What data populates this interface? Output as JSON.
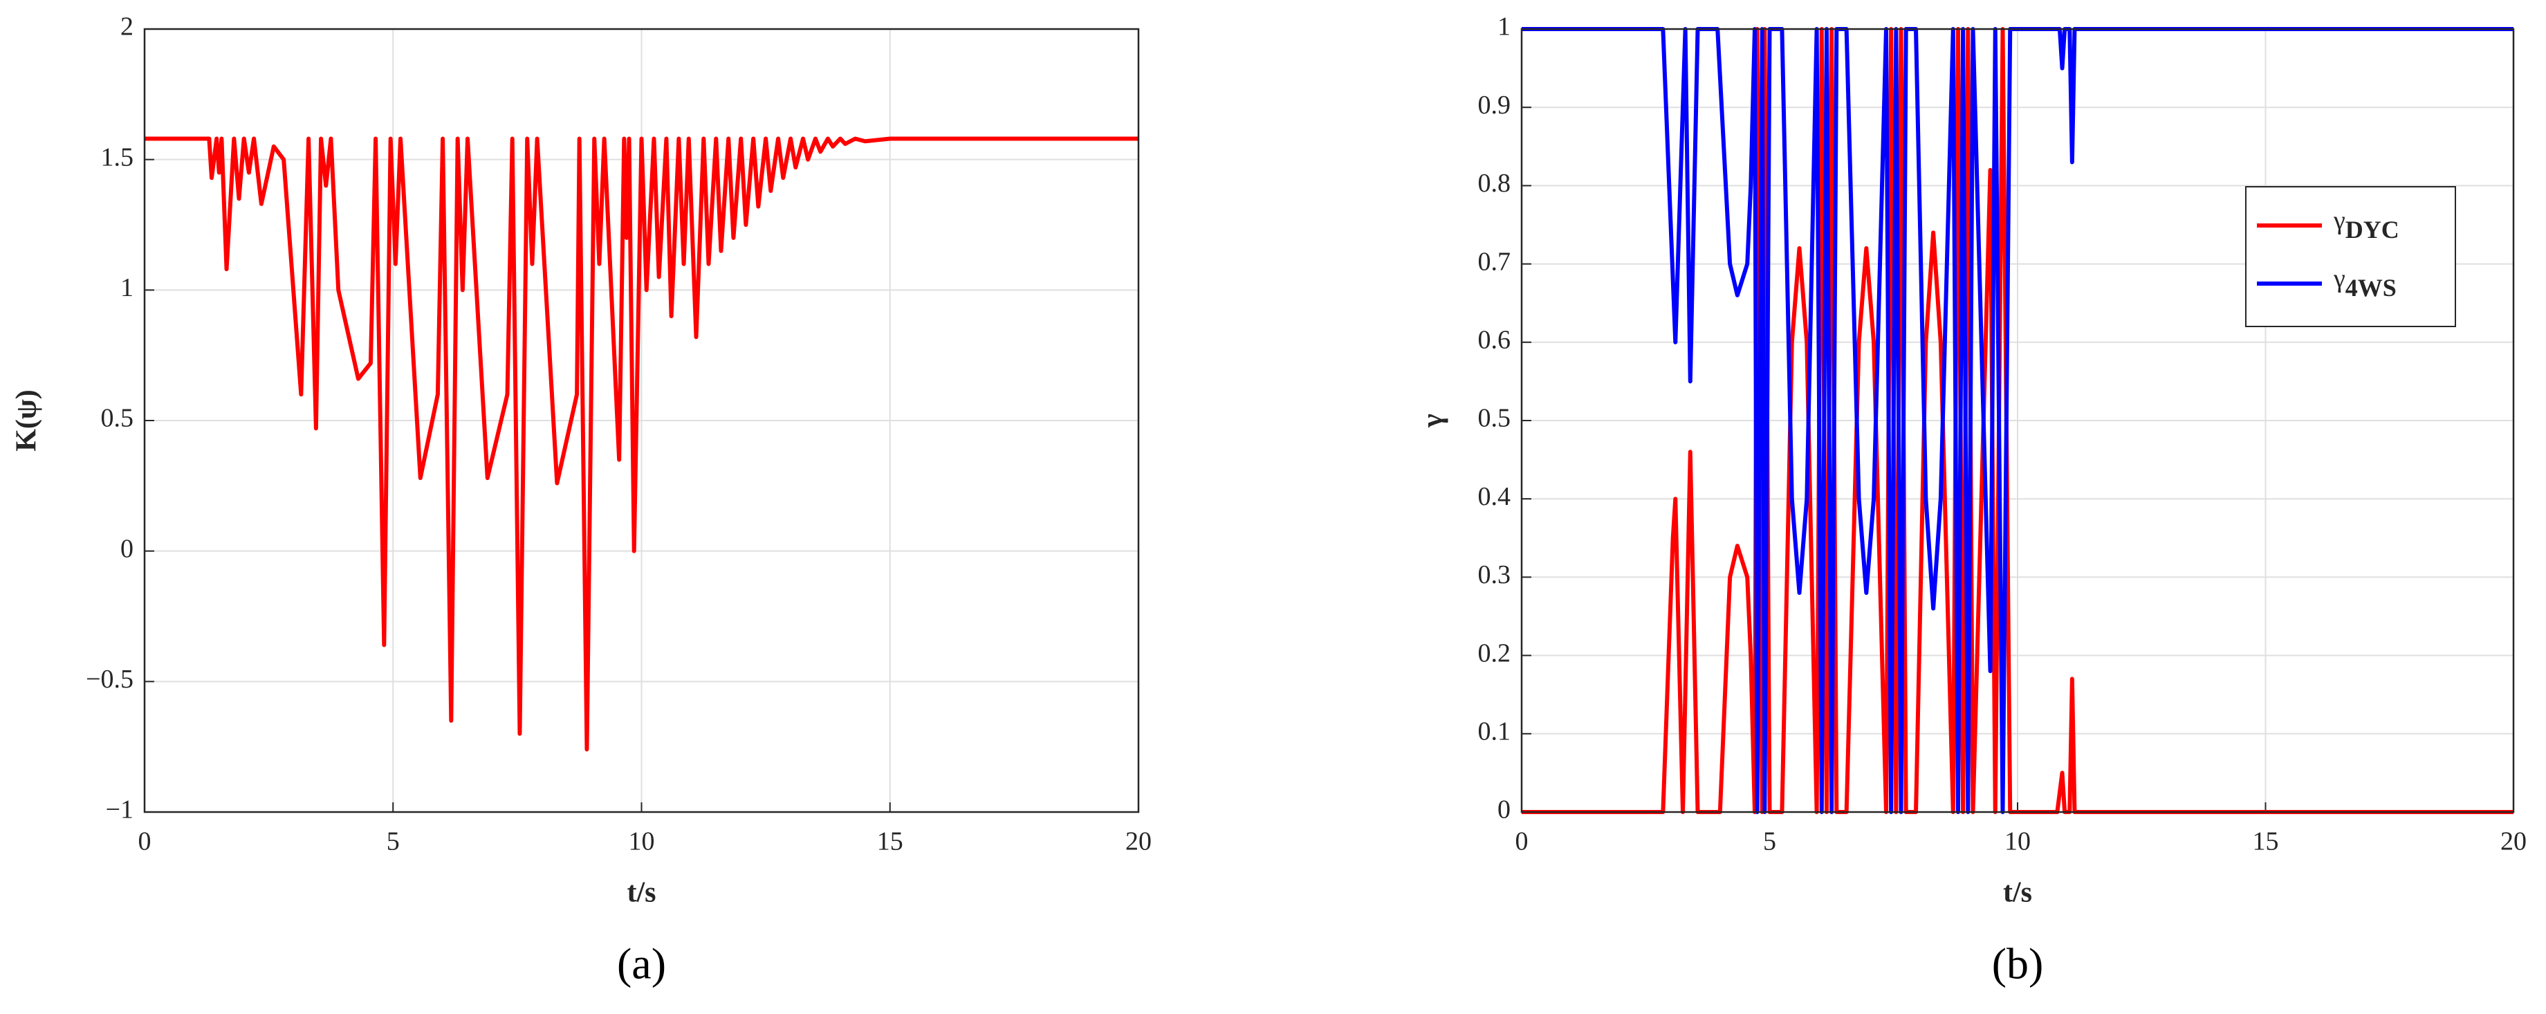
{
  "chart_data": [
    {
      "type": "line",
      "caption": "(a)",
      "xlabel": "t/s",
      "ylabel": "K(ψ)",
      "xlim": [
        0,
        20
      ],
      "xticks": [
        0,
        5,
        10,
        15,
        20
      ],
      "ylim": [
        -1,
        2
      ],
      "yticks": [
        {
          "value": -1,
          "label": "−1"
        },
        {
          "value": -0.5,
          "label": "−0.5"
        },
        0,
        0.5,
        1,
        1.5,
        2
      ],
      "grid": true,
      "series": [
        {
          "color": "#ff0000",
          "x": [
            0,
            1.3,
            1.35,
            1.45,
            1.5,
            1.55,
            1.65,
            1.8,
            1.9,
            2.0,
            2.1,
            2.2,
            2.35,
            2.6,
            2.8,
            3.15,
            3.3,
            3.45,
            3.55,
            3.65,
            3.75,
            3.9,
            4.3,
            4.55,
            4.65,
            4.82,
            4.95,
            5.05,
            5.15,
            5.55,
            5.9,
            6.0,
            6.17,
            6.3,
            6.4,
            6.5,
            6.9,
            7.3,
            7.4,
            7.55,
            7.7,
            7.8,
            7.9,
            8.3,
            8.7,
            8.75,
            8.9,
            9.05,
            9.15,
            9.25,
            9.55,
            9.65,
            9.7,
            9.75,
            9.85,
            10.0,
            10.1,
            10.25,
            10.35,
            10.5,
            10.6,
            10.75,
            10.85,
            10.95,
            11.1,
            11.25,
            11.35,
            11.5,
            11.6,
            11.75,
            11.85,
            12.0,
            12.1,
            12.25,
            12.35,
            12.5,
            12.6,
            12.75,
            12.85,
            13.0,
            13.1,
            13.25,
            13.35,
            13.5,
            13.6,
            13.75,
            13.85,
            14.0,
            14.1,
            14.3,
            14.5,
            15,
            20
          ],
          "values": [
            1.58,
            1.58,
            1.43,
            1.58,
            1.45,
            1.58,
            1.08,
            1.58,
            1.35,
            1.58,
            1.45,
            1.58,
            1.33,
            1.55,
            1.5,
            0.6,
            1.58,
            0.47,
            1.58,
            1.4,
            1.58,
            1.0,
            0.66,
            0.72,
            1.58,
            -0.36,
            1.58,
            1.1,
            1.58,
            0.28,
            0.6,
            1.58,
            -0.65,
            1.58,
            1.0,
            1.58,
            0.28,
            0.6,
            1.58,
            -0.7,
            1.58,
            1.1,
            1.58,
            0.26,
            0.6,
            1.58,
            -0.76,
            1.58,
            1.1,
            1.58,
            0.35,
            1.58,
            1.2,
            1.58,
            0.0,
            1.58,
            1.0,
            1.58,
            1.05,
            1.58,
            0.9,
            1.58,
            1.1,
            1.58,
            0.82,
            1.58,
            1.1,
            1.58,
            1.15,
            1.58,
            1.2,
            1.58,
            1.25,
            1.58,
            1.32,
            1.58,
            1.38,
            1.58,
            1.43,
            1.58,
            1.47,
            1.58,
            1.5,
            1.58,
            1.53,
            1.58,
            1.55,
            1.58,
            1.56,
            1.58,
            1.57,
            1.58,
            1.58
          ]
        }
      ]
    },
    {
      "type": "line",
      "caption": "(b)",
      "xlabel": "t/s",
      "ylabel": "γ",
      "xlim": [
        0,
        20
      ],
      "xticks": [
        0,
        5,
        10,
        15,
        20
      ],
      "ylim": [
        0,
        1
      ],
      "yticks": [
        0,
        0.1,
        0.2,
        0.3,
        0.4,
        0.5,
        0.6,
        0.7,
        0.8,
        0.9,
        1
      ],
      "grid": true,
      "legend": "right",
      "series": [
        {
          "name": "γDYC",
          "color": "#ff0000",
          "x": [
            0,
            2.85,
            3.05,
            3.1,
            3.25,
            3.4,
            3.55,
            4.0,
            4.2,
            4.35,
            4.55,
            4.62,
            4.7,
            4.75,
            4.85,
            4.9,
            5.0,
            5.25,
            5.45,
            5.6,
            5.75,
            5.95,
            6.05,
            6.15,
            6.25,
            6.35,
            6.55,
            6.8,
            6.95,
            7.1,
            7.35,
            7.45,
            7.55,
            7.65,
            7.75,
            7.95,
            8.15,
            8.3,
            8.45,
            8.7,
            8.8,
            8.9,
            9.0,
            9.1,
            9.45,
            9.55,
            9.7,
            9.85,
            10.8,
            10.9,
            10.95,
            11.05,
            11.1,
            11.15,
            20
          ],
          "values": [
            0,
            0,
            0.35,
            0.4,
            0,
            0.46,
            0,
            0,
            0.3,
            0.34,
            0.3,
            0.2,
            0,
            1,
            0,
            1,
            0,
            0,
            0.6,
            0.72,
            0.6,
            0,
            1,
            0,
            1,
            0,
            0,
            0.6,
            0.72,
            0.6,
            0,
            1,
            0,
            1,
            0,
            0,
            0.6,
            0.74,
            0.6,
            0,
            1,
            0,
            1,
            0,
            0.82,
            0,
            1,
            0,
            0,
            0.05,
            0,
            0,
            0.17,
            0,
            0
          ]
        },
        {
          "name": "γ4WS",
          "color": "#0000ff",
          "x": [
            0,
            2.85,
            3.1,
            3.3,
            3.4,
            3.55,
            3.95,
            4.2,
            4.35,
            4.55,
            4.62,
            4.7,
            4.75,
            4.85,
            4.9,
            5.0,
            5.25,
            5.45,
            5.6,
            5.75,
            5.95,
            6.05,
            6.15,
            6.25,
            6.35,
            6.55,
            6.8,
            6.95,
            7.1,
            7.35,
            7.45,
            7.55,
            7.65,
            7.75,
            7.95,
            8.15,
            8.3,
            8.45,
            8.7,
            8.8,
            8.9,
            9.0,
            9.1,
            9.45,
            9.55,
            9.7,
            9.85,
            10.85,
            10.9,
            10.95,
            11.05,
            11.1,
            11.15,
            20
          ],
          "values": [
            1,
            1,
            0.6,
            1,
            0.55,
            1,
            1,
            0.7,
            0.66,
            0.7,
            0.8,
            1,
            0,
            1,
            0,
            1,
            1,
            0.4,
            0.28,
            0.4,
            1,
            0,
            1,
            0,
            1,
            1,
            0.4,
            0.28,
            0.4,
            1,
            0,
            1,
            0,
            1,
            1,
            0.4,
            0.26,
            0.4,
            1,
            0,
            1,
            0,
            1,
            0.18,
            1,
            0,
            1,
            1,
            0.95,
            1,
            1,
            0.83,
            1,
            1
          ]
        }
      ]
    }
  ]
}
